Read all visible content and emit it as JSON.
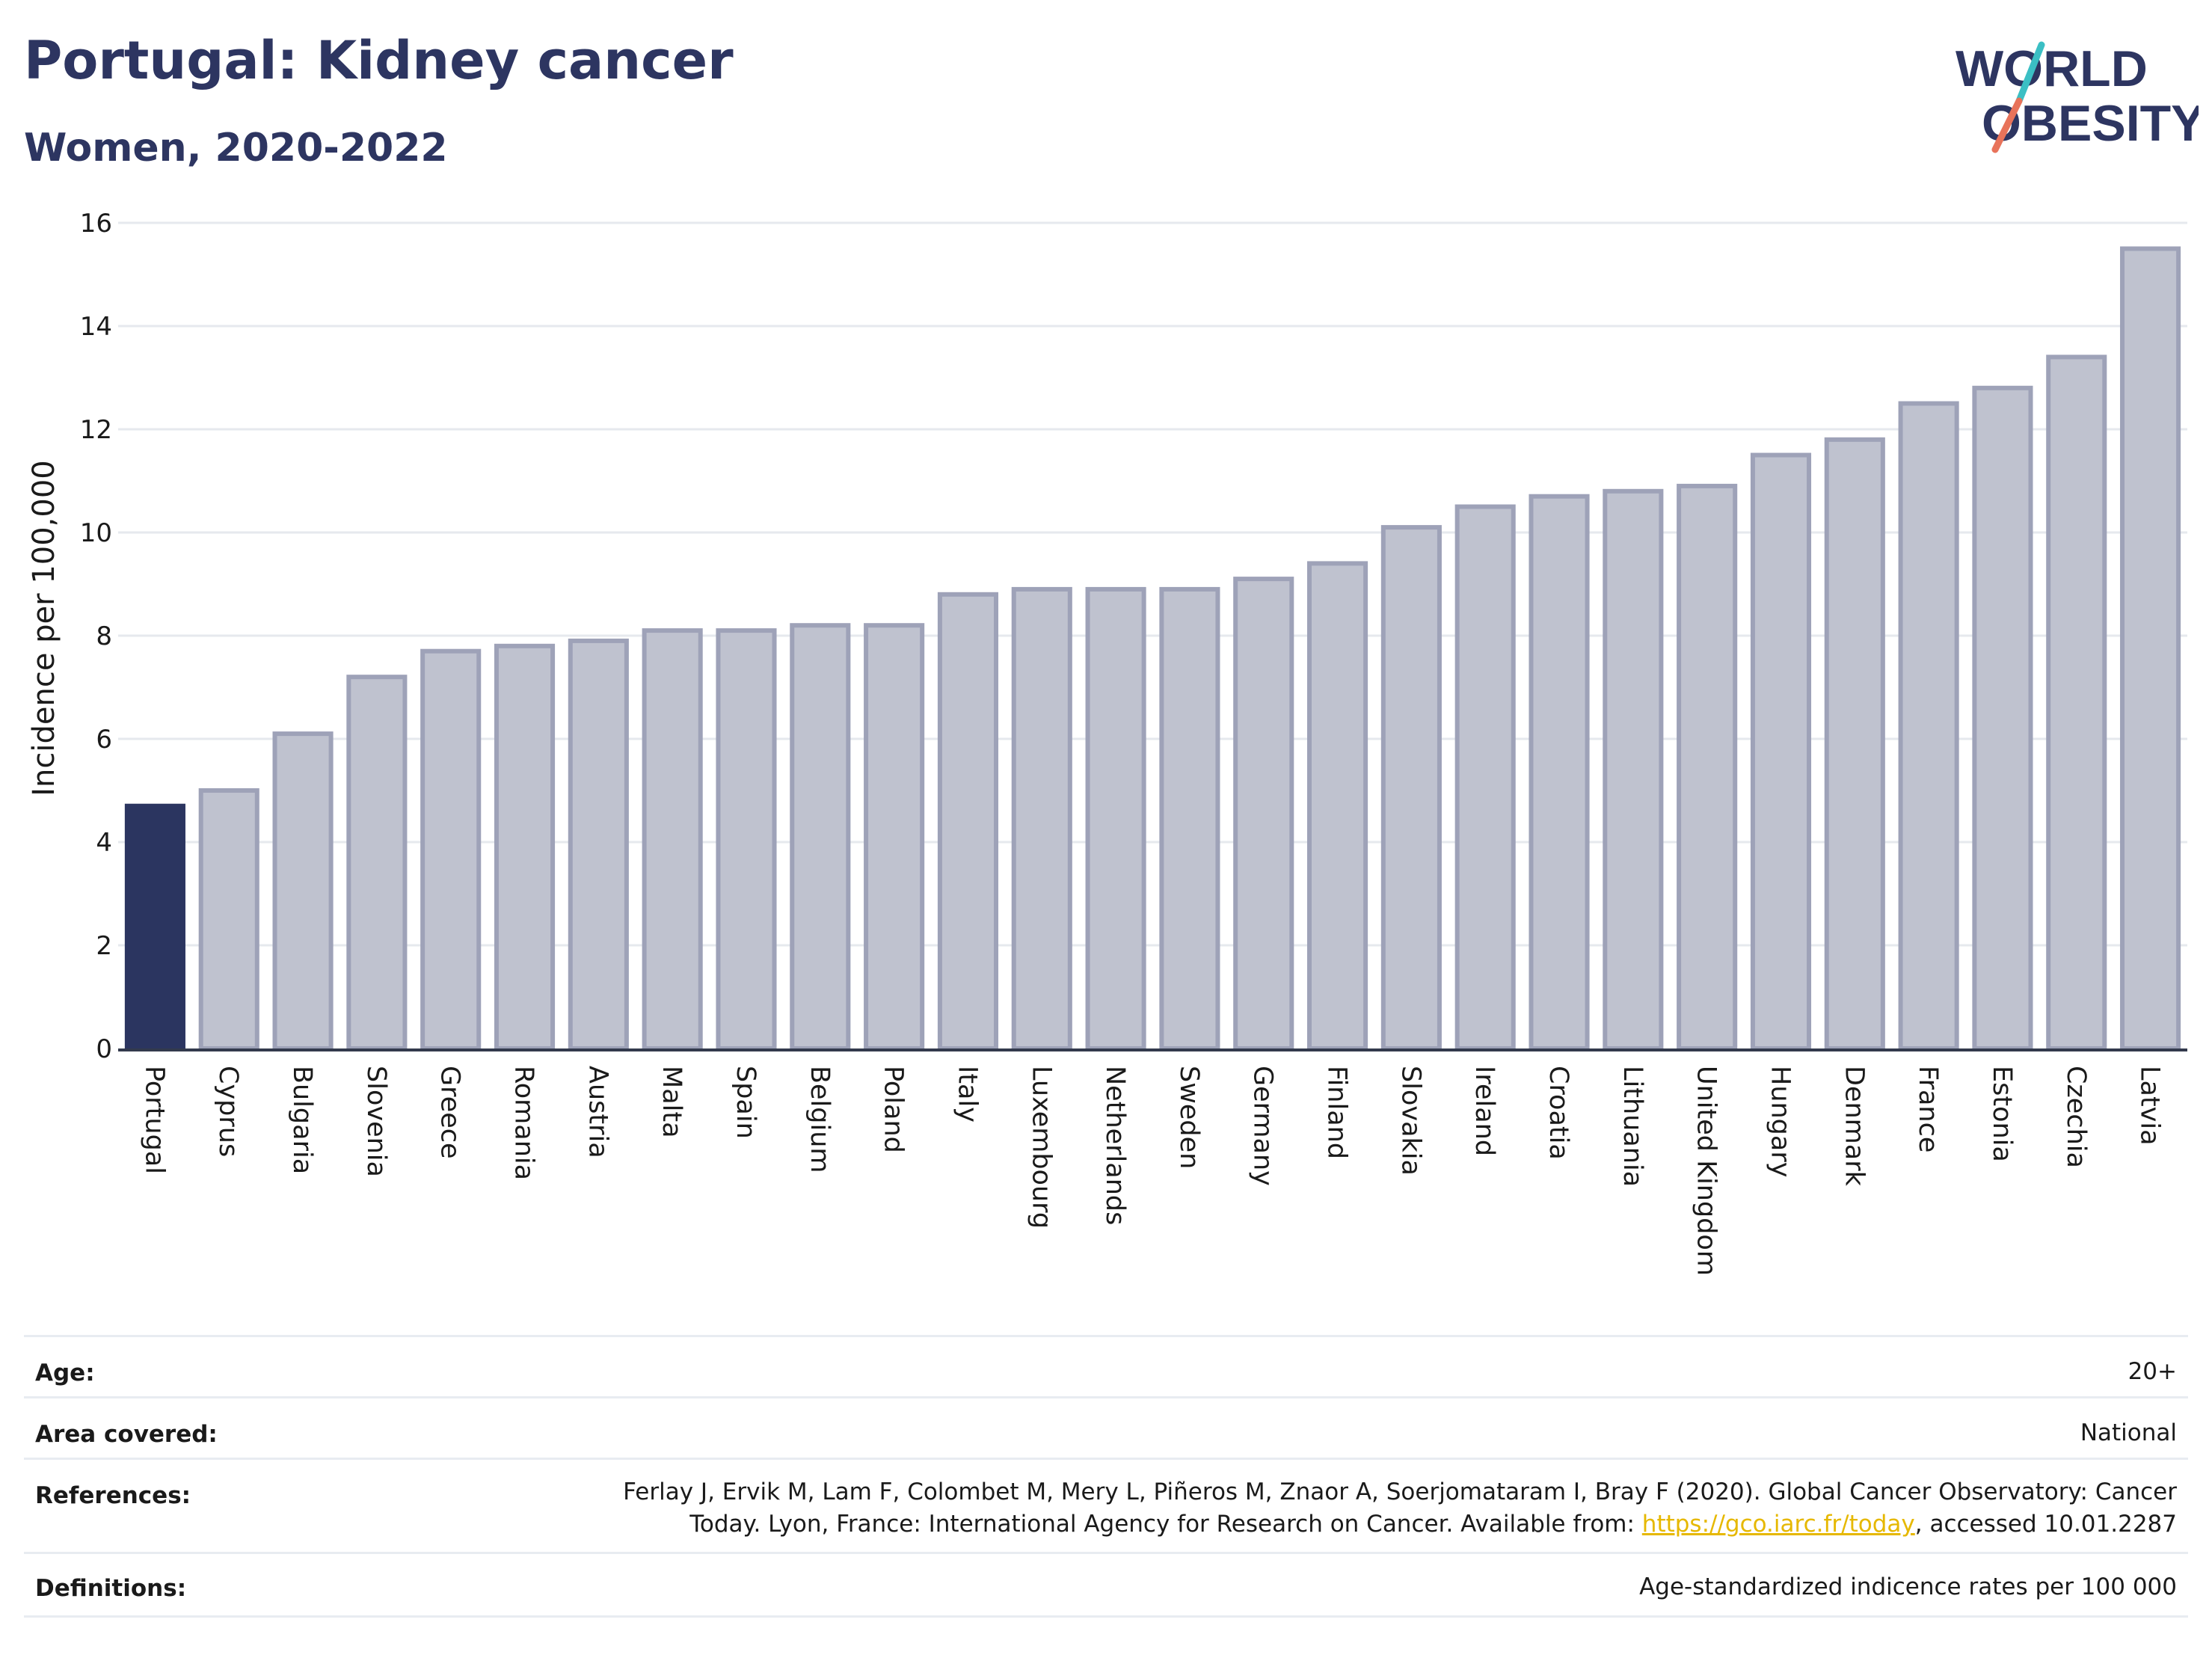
{
  "header": {
    "title": "Portugal: Kidney cancer",
    "subtitle": "Women, 2020-2022"
  },
  "logo": {
    "line1": "WORLD",
    "line2": "OBESITY",
    "colors": {
      "text": "#2d3561",
      "slash_teal": "#3bbfc4",
      "slash_coral": "#e8735a"
    }
  },
  "chart_data": {
    "type": "bar",
    "ylabel": "Incidence per 100,000",
    "ylim": [
      0,
      16
    ],
    "yticks": [
      0,
      2,
      4,
      6,
      8,
      10,
      12,
      14,
      16
    ],
    "grid": true,
    "highlight": "Portugal",
    "colors": {
      "highlight": "#2b3560",
      "bar_fill": "#bfc2cf",
      "bar_stroke": "#9ea2b8"
    },
    "categories": [
      "Portugal",
      "Cyprus",
      "Bulgaria",
      "Slovenia",
      "Greece",
      "Romania",
      "Austria",
      "Malta",
      "Spain",
      "Belgium",
      "Poland",
      "Italy",
      "Luxembourg",
      "Netherlands",
      "Sweden",
      "Germany",
      "Finland",
      "Slovakia",
      "Ireland",
      "Croatia",
      "Lithuania",
      "United Kingdom",
      "Hungary",
      "Denmark",
      "France",
      "Estonia",
      "Czechia",
      "Latvia"
    ],
    "values": [
      4.7,
      5.0,
      6.1,
      7.2,
      7.7,
      7.8,
      7.9,
      8.1,
      8.1,
      8.2,
      8.2,
      8.8,
      8.9,
      8.9,
      8.9,
      9.1,
      9.4,
      10.1,
      10.5,
      10.7,
      10.8,
      10.9,
      11.5,
      11.8,
      12.5,
      12.8,
      13.4,
      15.5
    ]
  },
  "meta": {
    "age_label": "Age:",
    "age_value": "20+",
    "area_label": "Area covered:",
    "area_value": "National",
    "references_label": "References:",
    "references_line1": "Ferlay J, Ervik M, Lam F, Colombet M, Mery L, Piñeros M, Znaor A, Soerjomataram I, Bray F (2020). Global Cancer Observatory: Cancer",
    "references_line2_pre": "Today. Lyon, France: International Agency for Research on Cancer. Available from: ",
    "references_link": "https://gco.iarc.fr/today",
    "references_line2_post": ", accessed 10.01.2287",
    "definitions_label": "Definitions:",
    "definitions_value": "Age-standardized indicence rates per 100 000"
  }
}
